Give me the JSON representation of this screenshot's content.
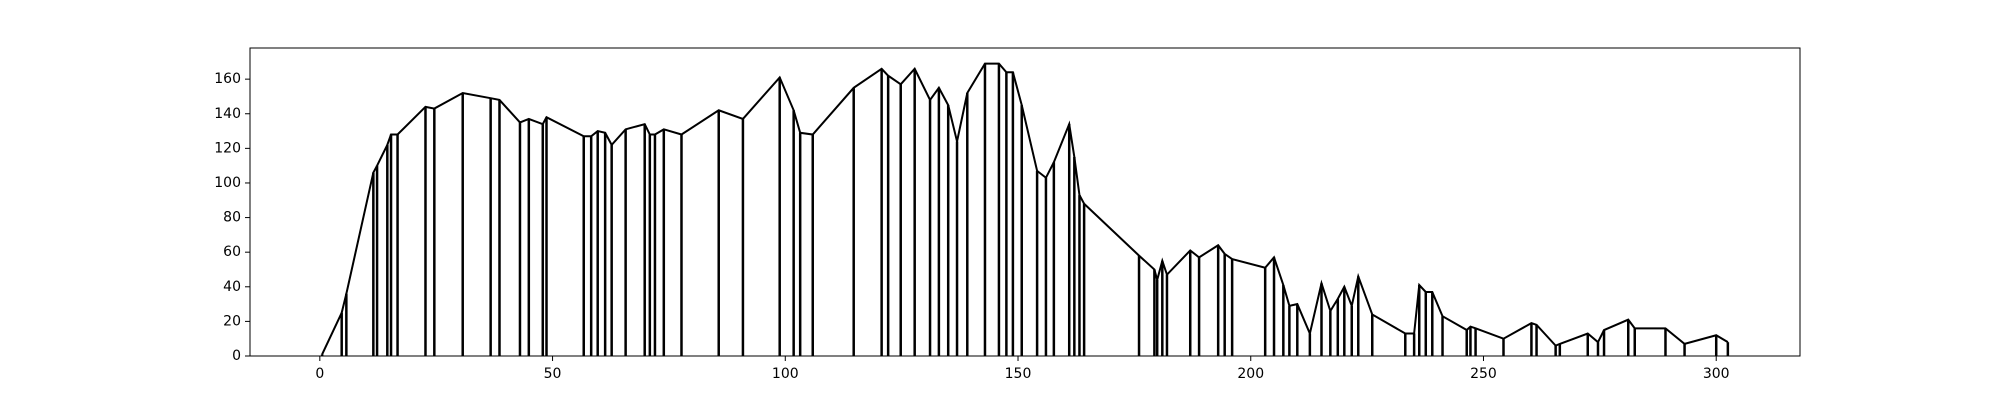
{
  "chart_data": {
    "type": "line",
    "drop_lines": true,
    "color": "#000000",
    "x": [
      0.5,
      4.7,
      5.7,
      11.5,
      12.3,
      14.5,
      15.3,
      16.7,
      22.7,
      24.6,
      30.7,
      36.7,
      38.6,
      43,
      44.9,
      47.9,
      48.7,
      56.7,
      58.3,
      59.7,
      61.3,
      62.7,
      65.7,
      69.8,
      70.9,
      72,
      73.9,
      77.7,
      85.7,
      90.9,
      98.8,
      101.8,
      103.2,
      105.9,
      114.7,
      120.7,
      122.1,
      124.8,
      127.8,
      131.1,
      133,
      135,
      136.9,
      139.1,
      142.9,
      145.9,
      147.5,
      148.9,
      150.8,
      154.1,
      156,
      157.7,
      161,
      162.1,
      163.2,
      164.2,
      176,
      179.3,
      179.9,
      181,
      182,
      187,
      188.9,
      193,
      194.4,
      196,
      203.1,
      205,
      207,
      208.3,
      210,
      212.7,
      215.2,
      217.1,
      218.7,
      220.1,
      221.7,
      223.1,
      226.1,
      233.2,
      235.1,
      236.2,
      237.6,
      239,
      241.2,
      246.4,
      247.2,
      248.3,
      254.3,
      260.3,
      261.4,
      265.5,
      266.4,
      272.4,
      274.6,
      275.9,
      281.1,
      282.5,
      289.1,
      293.2,
      300,
      302.5
    ],
    "values": [
      1,
      25,
      36,
      106,
      110,
      122,
      128,
      128,
      144,
      143,
      152,
      149,
      148,
      135,
      137,
      134,
      138,
      127,
      127,
      130,
      129,
      122,
      131,
      134,
      128,
      128,
      131,
      128,
      142,
      137,
      161,
      142,
      129,
      128,
      155,
      166,
      162,
      157,
      166,
      148,
      155,
      145,
      124,
      152,
      169,
      169,
      164,
      164,
      145,
      107,
      103,
      112,
      134,
      115,
      93,
      88,
      58,
      50,
      44,
      55,
      47,
      61,
      57,
      64,
      59,
      56,
      51,
      57,
      41,
      29,
      30,
      13,
      42,
      26,
      33,
      40,
      29,
      46,
      24,
      13,
      13,
      41,
      37,
      37,
      23,
      15,
      17,
      16,
      10,
      19,
      18,
      6,
      7,
      13,
      8,
      15,
      21,
      16,
      16,
      7,
      12,
      8
    ],
    "xlim": [
      -15,
      318
    ],
    "ylim": [
      0,
      178
    ],
    "xticks": [
      0,
      50,
      100,
      150,
      200,
      250,
      300
    ],
    "yticks": [
      0,
      20,
      40,
      60,
      80,
      100,
      120,
      140,
      160
    ]
  }
}
